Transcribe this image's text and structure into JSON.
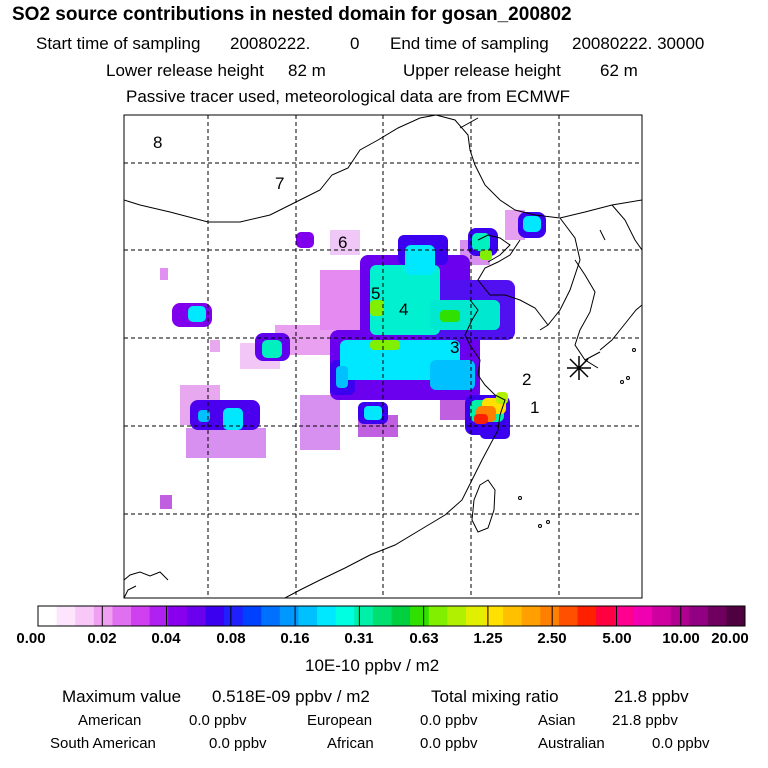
{
  "title": "SO2 source contributions in nested domain for gosan_200802",
  "header": {
    "start_label": "Start time of sampling",
    "start_value": "20080222.",
    "start_extra": "0",
    "end_label": "End time of sampling",
    "end_value": "20080222. 30000",
    "lower_label": "Lower release height",
    "lower_value": "82 m",
    "upper_label": "Upper release height",
    "upper_value": "62 m",
    "note": "Passive tracer used, meteorological data are from ECMWF"
  },
  "map": {
    "region_labels": [
      "1",
      "2",
      "3",
      "4",
      "5",
      "6",
      "7",
      "8"
    ],
    "receptor_marker": "asterisk-receptor-marker"
  },
  "colorbar": {
    "ticks": [
      "0.00",
      "0.02",
      "0.04",
      "0.08",
      "0.16",
      "0.31",
      "0.63",
      "1.25",
      "2.50",
      "5.00",
      "10.00",
      "20.00"
    ],
    "unit": "10E-10 ppbv / m2",
    "colors": [
      "#ffffff",
      "#fde6fd",
      "#f8c8f8",
      "#f0a0f0",
      "#e070f0",
      "#d040f0",
      "#b020f0",
      "#8800ee",
      "#6a00ee",
      "#3c00f0",
      "#2020ff",
      "#0040ff",
      "#0070ff",
      "#0098ff",
      "#00c0ff",
      "#00e8ff",
      "#00ffe0",
      "#00f0a8",
      "#00e070",
      "#00d040",
      "#30e000",
      "#80f000",
      "#b0f000",
      "#e0f000",
      "#ffe000",
      "#ffc000",
      "#ffa000",
      "#ff8000",
      "#ff5000",
      "#ff2000",
      "#ff0040",
      "#ff0090",
      "#f000b0",
      "#d000a0",
      "#b00090",
      "#900080",
      "#700060",
      "#500040"
    ]
  },
  "summary": {
    "max_label": "Maximum value",
    "max_value": "0.518E-09 ppbv / m2",
    "total_label": "Total mixing ratio",
    "total_value": "21.8 ppbv",
    "american_label": "American",
    "american_value": "0.0 ppbv",
    "european_label": "European",
    "european_value": "0.0 ppbv",
    "asian_label": "Asian",
    "asian_value": "21.8 ppbv",
    "south_american_label": "South American",
    "south_american_value": "0.0 ppbv",
    "african_label": "African",
    "african_value": "0.0 ppbv",
    "australian_label": "Australian",
    "australian_value": "0.0 ppbv"
  }
}
